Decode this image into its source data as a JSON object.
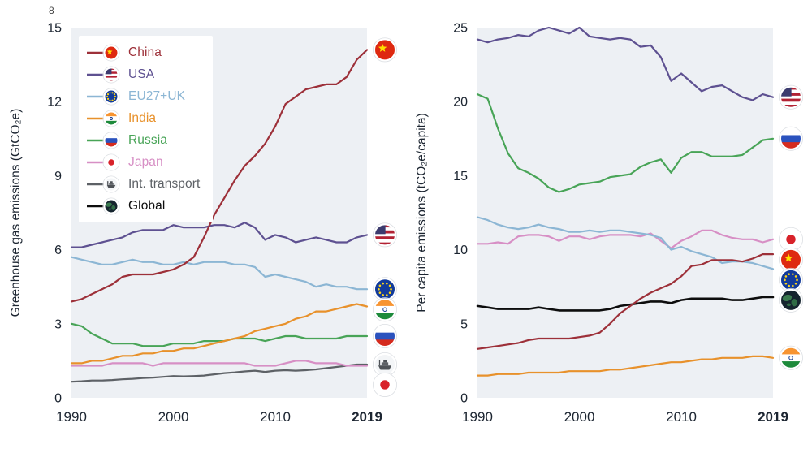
{
  "stray": {
    "top_left": "8"
  },
  "legend": {
    "items": [
      {
        "label": "China",
        "color": "#9d3039",
        "flag": "china"
      },
      {
        "label": "USA",
        "color": "#5e5191",
        "flag": "usa"
      },
      {
        "label": "EU27+UK",
        "color": "#8cb6d4",
        "flag": "eu"
      },
      {
        "label": "India",
        "color": "#e8912b",
        "flag": "india"
      },
      {
        "label": "Russia",
        "color": "#48a457",
        "flag": "russia"
      },
      {
        "label": "Japan",
        "color": "#d78fc5",
        "flag": "japan"
      },
      {
        "label": "Int. transport",
        "color": "#5d6166",
        "flag": "ship"
      },
      {
        "label": "Global",
        "color": "#0d0d0d",
        "flag": "globe"
      }
    ]
  },
  "chart_data": [
    {
      "type": "line",
      "title": "",
      "ylabel": "Greenhouse gas emissions (GtCO₂e)",
      "ylim": [
        0,
        15
      ],
      "yticks": [
        0,
        3,
        6,
        9,
        12,
        15
      ],
      "xticks": [
        1990,
        2000,
        2010,
        2019
      ],
      "x_start": 1990,
      "x_end": 2019,
      "grid": false,
      "legend_position": "top-left",
      "series": [
        {
          "name": "Int. transport",
          "color": "#5d6166",
          "flag": "ship",
          "values": [
            0.65,
            0.67,
            0.7,
            0.7,
            0.72,
            0.75,
            0.77,
            0.8,
            0.82,
            0.85,
            0.88,
            0.87,
            0.88,
            0.9,
            0.95,
            1.0,
            1.03,
            1.07,
            1.1,
            1.05,
            1.1,
            1.12,
            1.1,
            1.12,
            1.15,
            1.2,
            1.25,
            1.3,
            1.35,
            1.35
          ]
        },
        {
          "name": "Japan",
          "color": "#d78fc5",
          "flag": "japan",
          "values": [
            1.3,
            1.3,
            1.3,
            1.3,
            1.4,
            1.4,
            1.4,
            1.4,
            1.3,
            1.4,
            1.4,
            1.4,
            1.4,
            1.4,
            1.4,
            1.4,
            1.4,
            1.4,
            1.3,
            1.3,
            1.3,
            1.4,
            1.5,
            1.5,
            1.4,
            1.4,
            1.4,
            1.3,
            1.3,
            1.3
          ]
        },
        {
          "name": "Russia",
          "color": "#48a457",
          "flag": "russia",
          "values": [
            3.0,
            2.9,
            2.6,
            2.4,
            2.2,
            2.2,
            2.2,
            2.1,
            2.1,
            2.1,
            2.2,
            2.2,
            2.2,
            2.3,
            2.3,
            2.3,
            2.4,
            2.4,
            2.4,
            2.3,
            2.4,
            2.5,
            2.5,
            2.4,
            2.4,
            2.4,
            2.4,
            2.5,
            2.5,
            2.5
          ]
        },
        {
          "name": "India",
          "color": "#e8912b",
          "flag": "india",
          "values": [
            1.4,
            1.4,
            1.5,
            1.5,
            1.6,
            1.7,
            1.7,
            1.8,
            1.8,
            1.9,
            1.9,
            2.0,
            2.0,
            2.1,
            2.2,
            2.3,
            2.4,
            2.5,
            2.7,
            2.8,
            2.9,
            3.0,
            3.2,
            3.3,
            3.5,
            3.5,
            3.6,
            3.7,
            3.8,
            3.7
          ]
        },
        {
          "name": "EU27+UK",
          "color": "#8cb6d4",
          "flag": "eu",
          "values": [
            5.7,
            5.6,
            5.5,
            5.4,
            5.4,
            5.5,
            5.6,
            5.5,
            5.5,
            5.4,
            5.4,
            5.5,
            5.4,
            5.5,
            5.5,
            5.5,
            5.4,
            5.4,
            5.3,
            4.9,
            5.0,
            4.9,
            4.8,
            4.7,
            4.5,
            4.6,
            4.5,
            4.5,
            4.4,
            4.4
          ]
        },
        {
          "name": "USA",
          "color": "#5e5191",
          "flag": "usa",
          "values": [
            6.1,
            6.1,
            6.2,
            6.3,
            6.4,
            6.5,
            6.7,
            6.8,
            6.8,
            6.8,
            7.0,
            6.9,
            6.9,
            6.9,
            7.0,
            7.0,
            6.9,
            7.1,
            6.9,
            6.4,
            6.6,
            6.5,
            6.3,
            6.4,
            6.5,
            6.4,
            6.3,
            6.3,
            6.5,
            6.6
          ]
        },
        {
          "name": "China",
          "color": "#9d3039",
          "flag": "china",
          "values": [
            3.9,
            4.0,
            4.2,
            4.4,
            4.6,
            4.9,
            5.0,
            5.0,
            5.0,
            5.1,
            5.2,
            5.4,
            5.7,
            6.5,
            7.4,
            8.1,
            8.8,
            9.4,
            9.8,
            10.3,
            11.0,
            11.9,
            12.2,
            12.5,
            12.6,
            12.7,
            12.7,
            13.0,
            13.7,
            14.1
          ]
        }
      ]
    },
    {
      "type": "line",
      "title": "",
      "ylabel": "Per capita emissions (tCO₂e/capita)",
      "ylim": [
        0,
        25
      ],
      "yticks": [
        0,
        5,
        10,
        15,
        20,
        25
      ],
      "xticks": [
        1990,
        2000,
        2010,
        2019
      ],
      "x_start": 1990,
      "x_end": 2019,
      "grid": false,
      "legend_position": "none",
      "series": [
        {
          "name": "India",
          "color": "#e8912b",
          "flag": "india",
          "values": [
            1.5,
            1.5,
            1.6,
            1.6,
            1.6,
            1.7,
            1.7,
            1.7,
            1.7,
            1.8,
            1.8,
            1.8,
            1.8,
            1.9,
            1.9,
            2.0,
            2.1,
            2.2,
            2.3,
            2.4,
            2.4,
            2.5,
            2.6,
            2.6,
            2.7,
            2.7,
            2.7,
            2.8,
            2.8,
            2.7
          ]
        },
        {
          "name": "Global",
          "color": "#0d0d0d",
          "flag": "globe",
          "values": [
            6.2,
            6.1,
            6.0,
            6.0,
            6.0,
            6.0,
            6.1,
            6.0,
            5.9,
            5.9,
            5.9,
            5.9,
            5.9,
            6.0,
            6.2,
            6.3,
            6.4,
            6.5,
            6.5,
            6.4,
            6.6,
            6.7,
            6.7,
            6.7,
            6.7,
            6.6,
            6.6,
            6.7,
            6.8,
            6.8
          ]
        },
        {
          "name": "Japan",
          "color": "#d78fc5",
          "flag": "japan",
          "values": [
            10.4,
            10.4,
            10.5,
            10.4,
            10.9,
            11.0,
            11.0,
            10.9,
            10.6,
            10.9,
            10.9,
            10.7,
            10.9,
            11.0,
            11.0,
            11.0,
            10.9,
            11.1,
            10.6,
            10.1,
            10.6,
            10.9,
            11.3,
            11.3,
            11.0,
            10.8,
            10.7,
            10.7,
            10.5,
            10.7
          ]
        },
        {
          "name": "EU27+UK",
          "color": "#8cb6d4",
          "flag": "eu",
          "values": [
            12.2,
            12.0,
            11.7,
            11.5,
            11.4,
            11.5,
            11.7,
            11.5,
            11.4,
            11.2,
            11.2,
            11.3,
            11.2,
            11.3,
            11.3,
            11.2,
            11.1,
            11.0,
            10.8,
            10.0,
            10.2,
            9.9,
            9.7,
            9.5,
            9.1,
            9.2,
            9.2,
            9.1,
            8.9,
            8.7
          ]
        },
        {
          "name": "China",
          "color": "#9d3039",
          "flag": "china",
          "values": [
            3.3,
            3.4,
            3.5,
            3.6,
            3.7,
            3.9,
            4.0,
            4.0,
            4.0,
            4.0,
            4.1,
            4.2,
            4.4,
            5.0,
            5.7,
            6.2,
            6.7,
            7.1,
            7.4,
            7.7,
            8.2,
            8.9,
            9.0,
            9.3,
            9.3,
            9.3,
            9.2,
            9.4,
            9.7,
            9.7
          ]
        },
        {
          "name": "Russia",
          "color": "#48a457",
          "flag": "russia",
          "values": [
            20.5,
            20.2,
            18.2,
            16.5,
            15.5,
            15.2,
            14.8,
            14.2,
            13.9,
            14.1,
            14.4,
            14.5,
            14.6,
            14.9,
            15.0,
            15.1,
            15.6,
            15.9,
            16.1,
            15.2,
            16.2,
            16.6,
            16.6,
            16.3,
            16.3,
            16.3,
            16.4,
            16.9,
            17.4,
            17.5
          ]
        },
        {
          "name": "USA",
          "color": "#5e5191",
          "flag": "usa",
          "values": [
            24.2,
            24.0,
            24.2,
            24.3,
            24.5,
            24.4,
            24.8,
            25.0,
            24.8,
            24.6,
            25.0,
            24.4,
            24.3,
            24.2,
            24.3,
            24.2,
            23.7,
            23.8,
            23.0,
            21.4,
            21.9,
            21.3,
            20.7,
            21.0,
            21.1,
            20.7,
            20.3,
            20.1,
            20.5,
            20.3
          ]
        }
      ]
    }
  ]
}
